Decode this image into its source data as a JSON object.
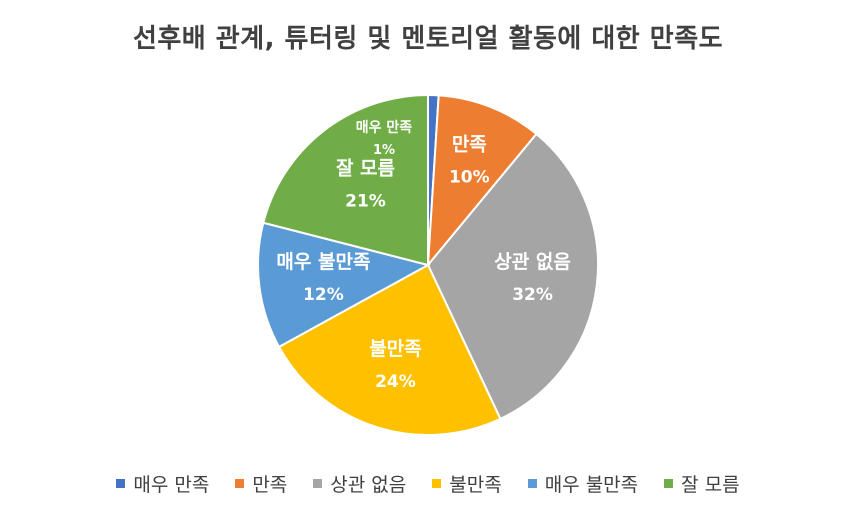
{
  "chart_data": {
    "type": "pie",
    "title": "선후배 관계, 튜터링 및 멘토리얼 활동에 대한 만족도",
    "slices": [
      {
        "label": "매우 만족",
        "value": 1,
        "display": "1%",
        "color": "#4472C4"
      },
      {
        "label": "만족",
        "value": 10,
        "display": "10%",
        "color": "#ED7D31"
      },
      {
        "label": "상관 없음",
        "value": 32,
        "display": "32%",
        "color": "#A5A5A5"
      },
      {
        "label": "불만족",
        "value": 24,
        "display": "24%",
        "color": "#FFC000"
      },
      {
        "label": "매우 불만족",
        "value": 12,
        "display": "12%",
        "color": "#5B9BD5"
      },
      {
        "label": "잘 모름",
        "value": 21,
        "display": "21%",
        "color": "#70AD47"
      }
    ],
    "legend_position": "bottom"
  }
}
